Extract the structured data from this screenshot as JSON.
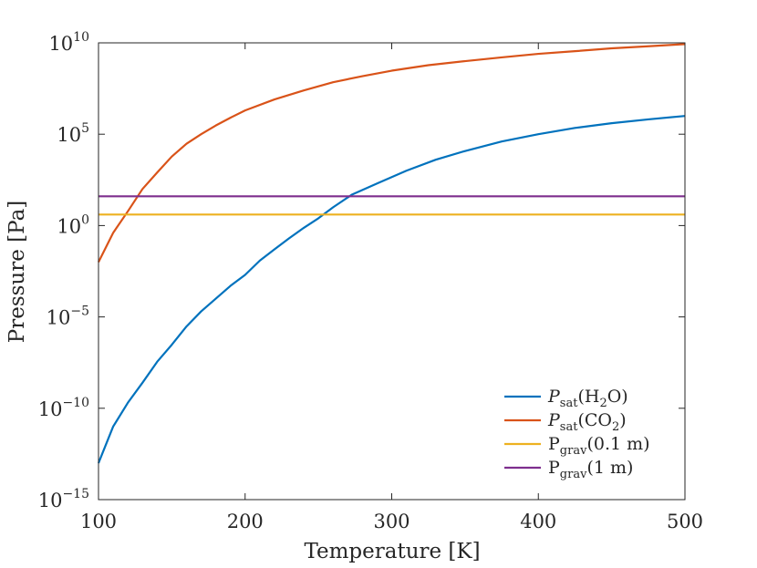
{
  "chart_data": {
    "type": "line",
    "xlabel": "Temperature [K]",
    "ylabel": "Pressure [Pa]",
    "xlim": [
      100,
      500
    ],
    "ylim": [
      1e-15,
      10000000000.0
    ],
    "yscale": "log",
    "grid": false,
    "legend_position": "bottom-right",
    "x_ticks": [
      100,
      200,
      300,
      400,
      500
    ],
    "x_tick_labels": [
      "100",
      "200",
      "300",
      "400",
      "500"
    ],
    "y_tick_labels": [
      {
        "base": "10",
        "exp": "10",
        "value": 10000000000.0
      },
      {
        "base": "10",
        "exp": "5",
        "value": 100000.0
      },
      {
        "base": "10",
        "exp": "0",
        "value": 1
      },
      {
        "base": "10",
        "exp": "−5",
        "value": 1e-05
      },
      {
        "base": "10",
        "exp": "−10",
        "value": 1e-10
      },
      {
        "base": "10",
        "exp": "−15",
        "value": 1e-15
      }
    ],
    "series": [
      {
        "name": "P_sat(H2O)",
        "label_main": "P",
        "label_sub": "sat",
        "label_rest": "(H",
        "label_sub2": "2",
        "label_end": "O)",
        "color": "#0072BD",
        "x": [
          100,
          110,
          120,
          130,
          140,
          150,
          160,
          170,
          180,
          190,
          200,
          210,
          220,
          230,
          240,
          250,
          260,
          273,
          290,
          310,
          330,
          350,
          375,
          400,
          425,
          450,
          475,
          500
        ],
        "y": [
          1e-13,
          1e-11,
          2e-10,
          2.5e-09,
          3.5e-08,
          3e-07,
          3e-06,
          2e-05,
          0.0001,
          0.0005,
          0.002,
          0.012,
          0.05,
          0.2,
          0.75,
          2.5,
          10,
          50,
          200,
          1000,
          4000,
          12000,
          40000,
          100000,
          220000,
          400000,
          650000,
          1000000
        ]
      },
      {
        "name": "P_sat(CO2)",
        "label_main": "P",
        "label_sub": "sat",
        "label_rest": "(CO",
        "label_sub2": "2",
        "label_end": ")",
        "color": "#D95319",
        "x": [
          100,
          110,
          120,
          130,
          140,
          150,
          160,
          170,
          180,
          190,
          200,
          220,
          240,
          260,
          280,
          300,
          325,
          350,
          375,
          400,
          425,
          450,
          475,
          500
        ],
        "y": [
          0.01,
          0.4,
          6,
          100,
          800,
          6000,
          30000,
          100000,
          300000,
          800000,
          2000000,
          8000000,
          25000000,
          70000000,
          150000000,
          300000000,
          600000000,
          1000000000,
          1600000000,
          2500000000,
          3500000000,
          5000000000,
          6500000000,
          8500000000
        ]
      },
      {
        "name": "P_grav(0.1 m)",
        "label_main": "P",
        "label_sub": "grav",
        "label_rest": "(0.1 m)",
        "label_sub2": "",
        "label_end": "",
        "color": "#EDB120",
        "x": [
          100,
          500
        ],
        "y": [
          4,
          4
        ]
      },
      {
        "name": "P_grav(1 m)",
        "label_main": "P",
        "label_sub": "grav",
        "label_rest": "(1 m)",
        "label_sub2": "",
        "label_end": "",
        "color": "#7E2F8E",
        "x": [
          100,
          500
        ],
        "y": [
          40,
          40
        ]
      }
    ]
  }
}
